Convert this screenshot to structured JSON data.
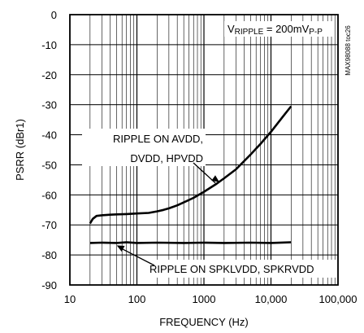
{
  "page_title": "",
  "chart_data": {
    "type": "line",
    "title": "",
    "xlabel": "FREQUENCY (Hz)",
    "ylabel": "PSRR (dBr1)",
    "x_scale": "log",
    "xlim": [
      10,
      100000
    ],
    "ylim": [
      -90,
      0
    ],
    "x_ticks": [
      10,
      100,
      1000,
      10000,
      100000
    ],
    "x_tick_labels": [
      "10",
      "100",
      "1000",
      "10,000",
      "100,000"
    ],
    "y_ticks": [
      0,
      -10,
      -20,
      -30,
      -40,
      -50,
      -60,
      -70,
      -80,
      -90
    ],
    "y_tick_labels": [
      "0",
      "-10",
      "-20",
      "-30",
      "-40",
      "-50",
      "-60",
      "-70",
      "-80",
      "-90"
    ],
    "grid": true,
    "condition_label": {
      "prefix": "V",
      "sub1": "RIPPLE",
      "mid": " = 200mV",
      "sub2": "P-P"
    },
    "side_id": "MAX98088 toc26",
    "annotations": [
      {
        "lines": [
          "RIPPLE ON AVDD,",
          "DVDD, HPVDD"
        ],
        "target_series": 0
      },
      {
        "lines": [
          "RIPPLE ON SPKLVDD, SPKRVDD"
        ],
        "target_series": 1
      }
    ],
    "series": [
      {
        "x": [
          20,
          22,
          25,
          30,
          40,
          50,
          70,
          100,
          150,
          200,
          250,
          300,
          400,
          500,
          700,
          1000,
          1500,
          2000,
          3000,
          5000,
          7000,
          10000,
          15000,
          20000
        ],
        "y": [
          -69.5,
          -68,
          -67,
          -66.8,
          -66.6,
          -66.5,
          -66.4,
          -66.2,
          -66,
          -65.5,
          -65,
          -64.5,
          -63.5,
          -62.5,
          -61,
          -59,
          -56.5,
          -54.5,
          -51.5,
          -46.5,
          -43,
          -39,
          -34,
          -30.5
        ]
      },
      {
        "x": [
          20,
          30,
          50,
          70,
          100,
          200,
          500,
          1000,
          2000,
          5000,
          10000,
          20000
        ],
        "y": [
          -76,
          -75.9,
          -76,
          -75.8,
          -76,
          -75.9,
          -76,
          -75.9,
          -76,
          -75.9,
          -76,
          -75.8
        ]
      }
    ]
  }
}
